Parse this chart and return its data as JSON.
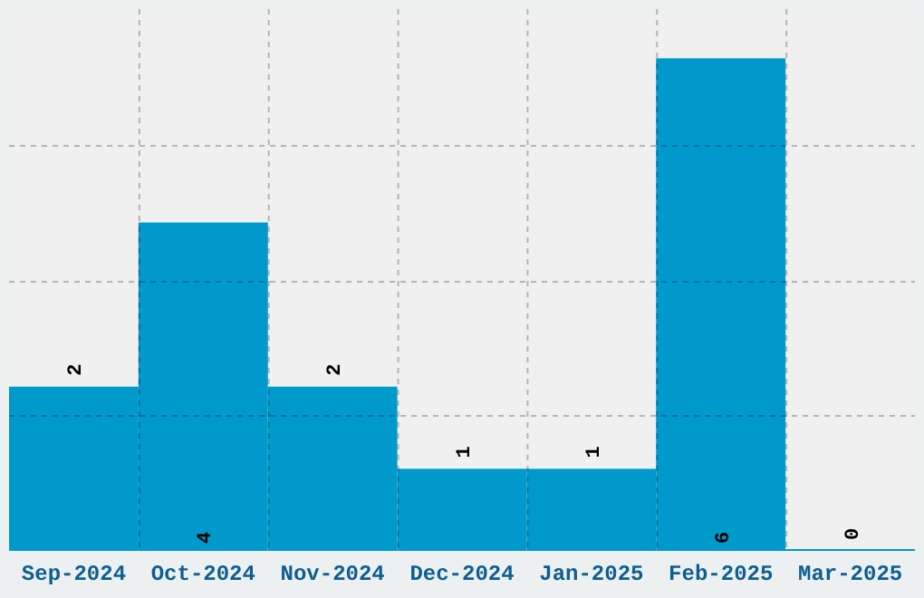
{
  "chart_data": {
    "type": "bar",
    "categories": [
      "Sep-2024",
      "Oct-2024",
      "Nov-2024",
      "Dec-2024",
      "Jan-2025",
      "Feb-2025",
      "Mar-2025"
    ],
    "values": [
      2,
      4,
      2,
      1,
      1,
      6,
      0
    ],
    "color": "#0099cc",
    "ylim": [
      0,
      6.6
    ],
    "yticks": [
      {
        "value": 1.65,
        "label": null
      },
      {
        "value": 3.3,
        "label": null
      },
      {
        "value": 4.95,
        "label": null
      }
    ],
    "tick_labels": "x",
    "grid": true,
    "data_labels": true
  }
}
